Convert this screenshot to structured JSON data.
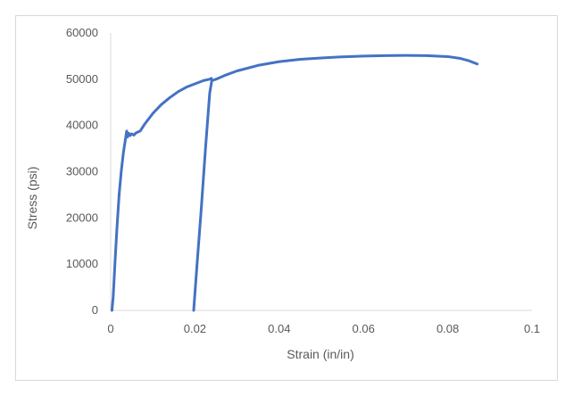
{
  "chart_data": {
    "type": "line",
    "title": "",
    "xlabel": "Strain (in/in)",
    "ylabel": "Stress (psi)",
    "xlim": [
      0,
      0.1
    ],
    "ylim": [
      0,
      60000
    ],
    "x_ticks": [
      0,
      0.02,
      0.04,
      0.06,
      0.08,
      0.1
    ],
    "x_tick_labels": [
      "0",
      "0.02",
      "0.04",
      "0.06",
      "0.08",
      "0.1"
    ],
    "y_ticks": [
      0,
      10000,
      20000,
      30000,
      40000,
      50000,
      60000
    ],
    "y_tick_labels": [
      "0",
      "10000",
      "20000",
      "30000",
      "40000",
      "50000",
      "60000"
    ],
    "grid": false,
    "legend": "none",
    "series": [
      {
        "color": "#4472c4",
        "x": [
          0.0003,
          0.0006,
          0.001,
          0.0015,
          0.002,
          0.0025,
          0.003,
          0.0035,
          0.0038,
          0.004,
          0.0043,
          0.0046,
          0.005,
          0.0055,
          0.006,
          0.007,
          0.008,
          0.01,
          0.012,
          0.014,
          0.016,
          0.018,
          0.02,
          0.022,
          0.0235,
          0.0239
        ],
        "y": [
          0,
          3000,
          10000,
          18000,
          25000,
          30000,
          34000,
          37000,
          38800,
          37500,
          38300,
          37800,
          38200,
          37900,
          38400,
          38800,
          40200,
          42600,
          44500,
          46000,
          47300,
          48300,
          49000,
          49700,
          50000,
          50200
        ]
      },
      {
        "color": "#4472c4",
        "x": [
          0.0197,
          0.0205,
          0.0215,
          0.0225,
          0.0235,
          0.024,
          0.025,
          0.027,
          0.03,
          0.035,
          0.04,
          0.045,
          0.05,
          0.055,
          0.06,
          0.065,
          0.07,
          0.075,
          0.08,
          0.083,
          0.085,
          0.087
        ],
        "y": [
          0,
          10000,
          22000,
          35000,
          47000,
          49700,
          50000,
          50800,
          51800,
          53000,
          53800,
          54300,
          54600,
          54850,
          55000,
          55100,
          55150,
          55100,
          54900,
          54500,
          54000,
          53300
        ]
      }
    ]
  }
}
